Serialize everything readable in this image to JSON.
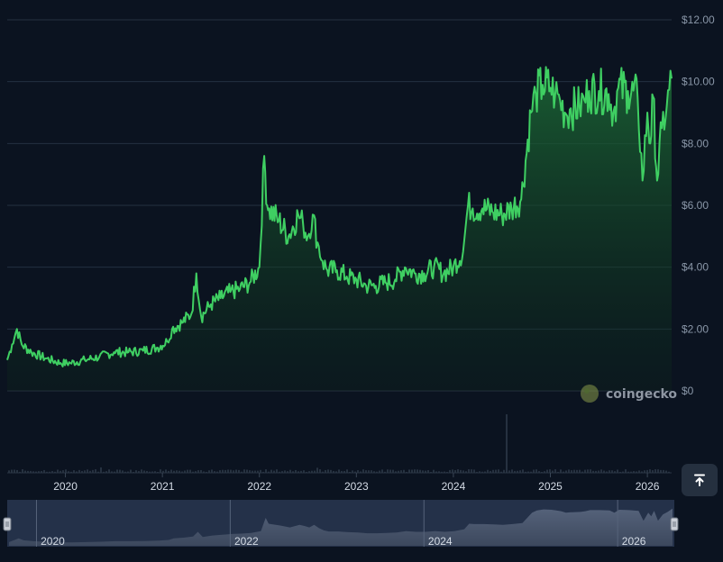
{
  "chart_data": {
    "type": "area",
    "title": "",
    "xlabel": "",
    "ylabel": "",
    "ylim": [
      0,
      12
    ],
    "y_ticks": [
      "$0",
      "$2.00",
      "$4.00",
      "$6.00",
      "$8.00",
      "$10.00",
      "$12.00"
    ],
    "x_ticks": [
      "2020",
      "2021",
      "2022",
      "2023",
      "2024",
      "2025",
      "2026"
    ],
    "navigator_ticks": [
      "2020",
      "2022",
      "2024",
      "2026"
    ],
    "grid": true,
    "line_color": "#3fcf62",
    "series": [
      {
        "x": [
          2019.4,
          2019.45,
          2019.5,
          2019.55,
          2019.65,
          2019.8,
          2019.95,
          2020.05,
          2020.2,
          2020.35,
          2020.5,
          2020.65,
          2020.8,
          2020.95,
          2021.05,
          2021.1,
          2021.2,
          2021.3,
          2021.35,
          2021.4,
          2021.5,
          2021.6,
          2021.7,
          2021.8,
          2021.9,
          2022.0,
          2022.05,
          2022.08,
          2022.1,
          2022.2,
          2022.3,
          2022.4,
          2022.45,
          2022.5,
          2022.55,
          2022.6,
          2022.65,
          2022.7,
          2022.8,
          2022.9,
          2023.0,
          2023.1,
          2023.2,
          2023.3,
          2023.4,
          2023.5,
          2023.6,
          2023.7,
          2023.8,
          2023.9,
          2024.0,
          2024.1,
          2024.15,
          2024.2,
          2024.3,
          2024.4,
          2024.5,
          2024.6,
          2024.7,
          2024.8,
          2024.85,
          2024.92,
          2025.0,
          2025.05,
          2025.1,
          2025.15,
          2025.2,
          2025.3,
          2025.35,
          2025.4,
          2025.5,
          2025.6,
          2025.65,
          2025.7,
          2025.8,
          2025.9,
          2025.95,
          2026.0,
          2026.03,
          2026.06,
          2026.1,
          2026.15,
          2026.2,
          2026.25
        ],
        "values": [
          1.0,
          1.5,
          2.0,
          1.5,
          1.25,
          1.05,
          0.9,
          0.9,
          1.0,
          1.1,
          1.25,
          1.25,
          1.3,
          1.4,
          1.6,
          2.0,
          2.2,
          2.5,
          3.8,
          2.4,
          2.8,
          3.0,
          3.2,
          3.3,
          3.5,
          4.0,
          7.6,
          6.0,
          5.9,
          5.5,
          5.0,
          5.7,
          5.4,
          5.0,
          5.7,
          4.8,
          4.2,
          3.9,
          3.9,
          3.7,
          3.6,
          3.4,
          3.4,
          3.5,
          3.6,
          4.0,
          3.8,
          3.8,
          4.0,
          3.8,
          4.0,
          4.5,
          6.0,
          5.9,
          5.9,
          5.8,
          5.7,
          5.9,
          6.2,
          9.0,
          9.6,
          9.9,
          9.8,
          9.6,
          9.4,
          9.0,
          9.1,
          9.2,
          9.4,
          9.7,
          9.7,
          9.6,
          9.0,
          9.8,
          9.7,
          9.5,
          6.8,
          9.0,
          8.0,
          9.5,
          6.8,
          8.5,
          9.2,
          10.1
        ]
      }
    ]
  },
  "brand": {
    "name": "coingecko"
  },
  "controls": {
    "scroll_top_icon": "arrow-up-to-line-icon"
  }
}
